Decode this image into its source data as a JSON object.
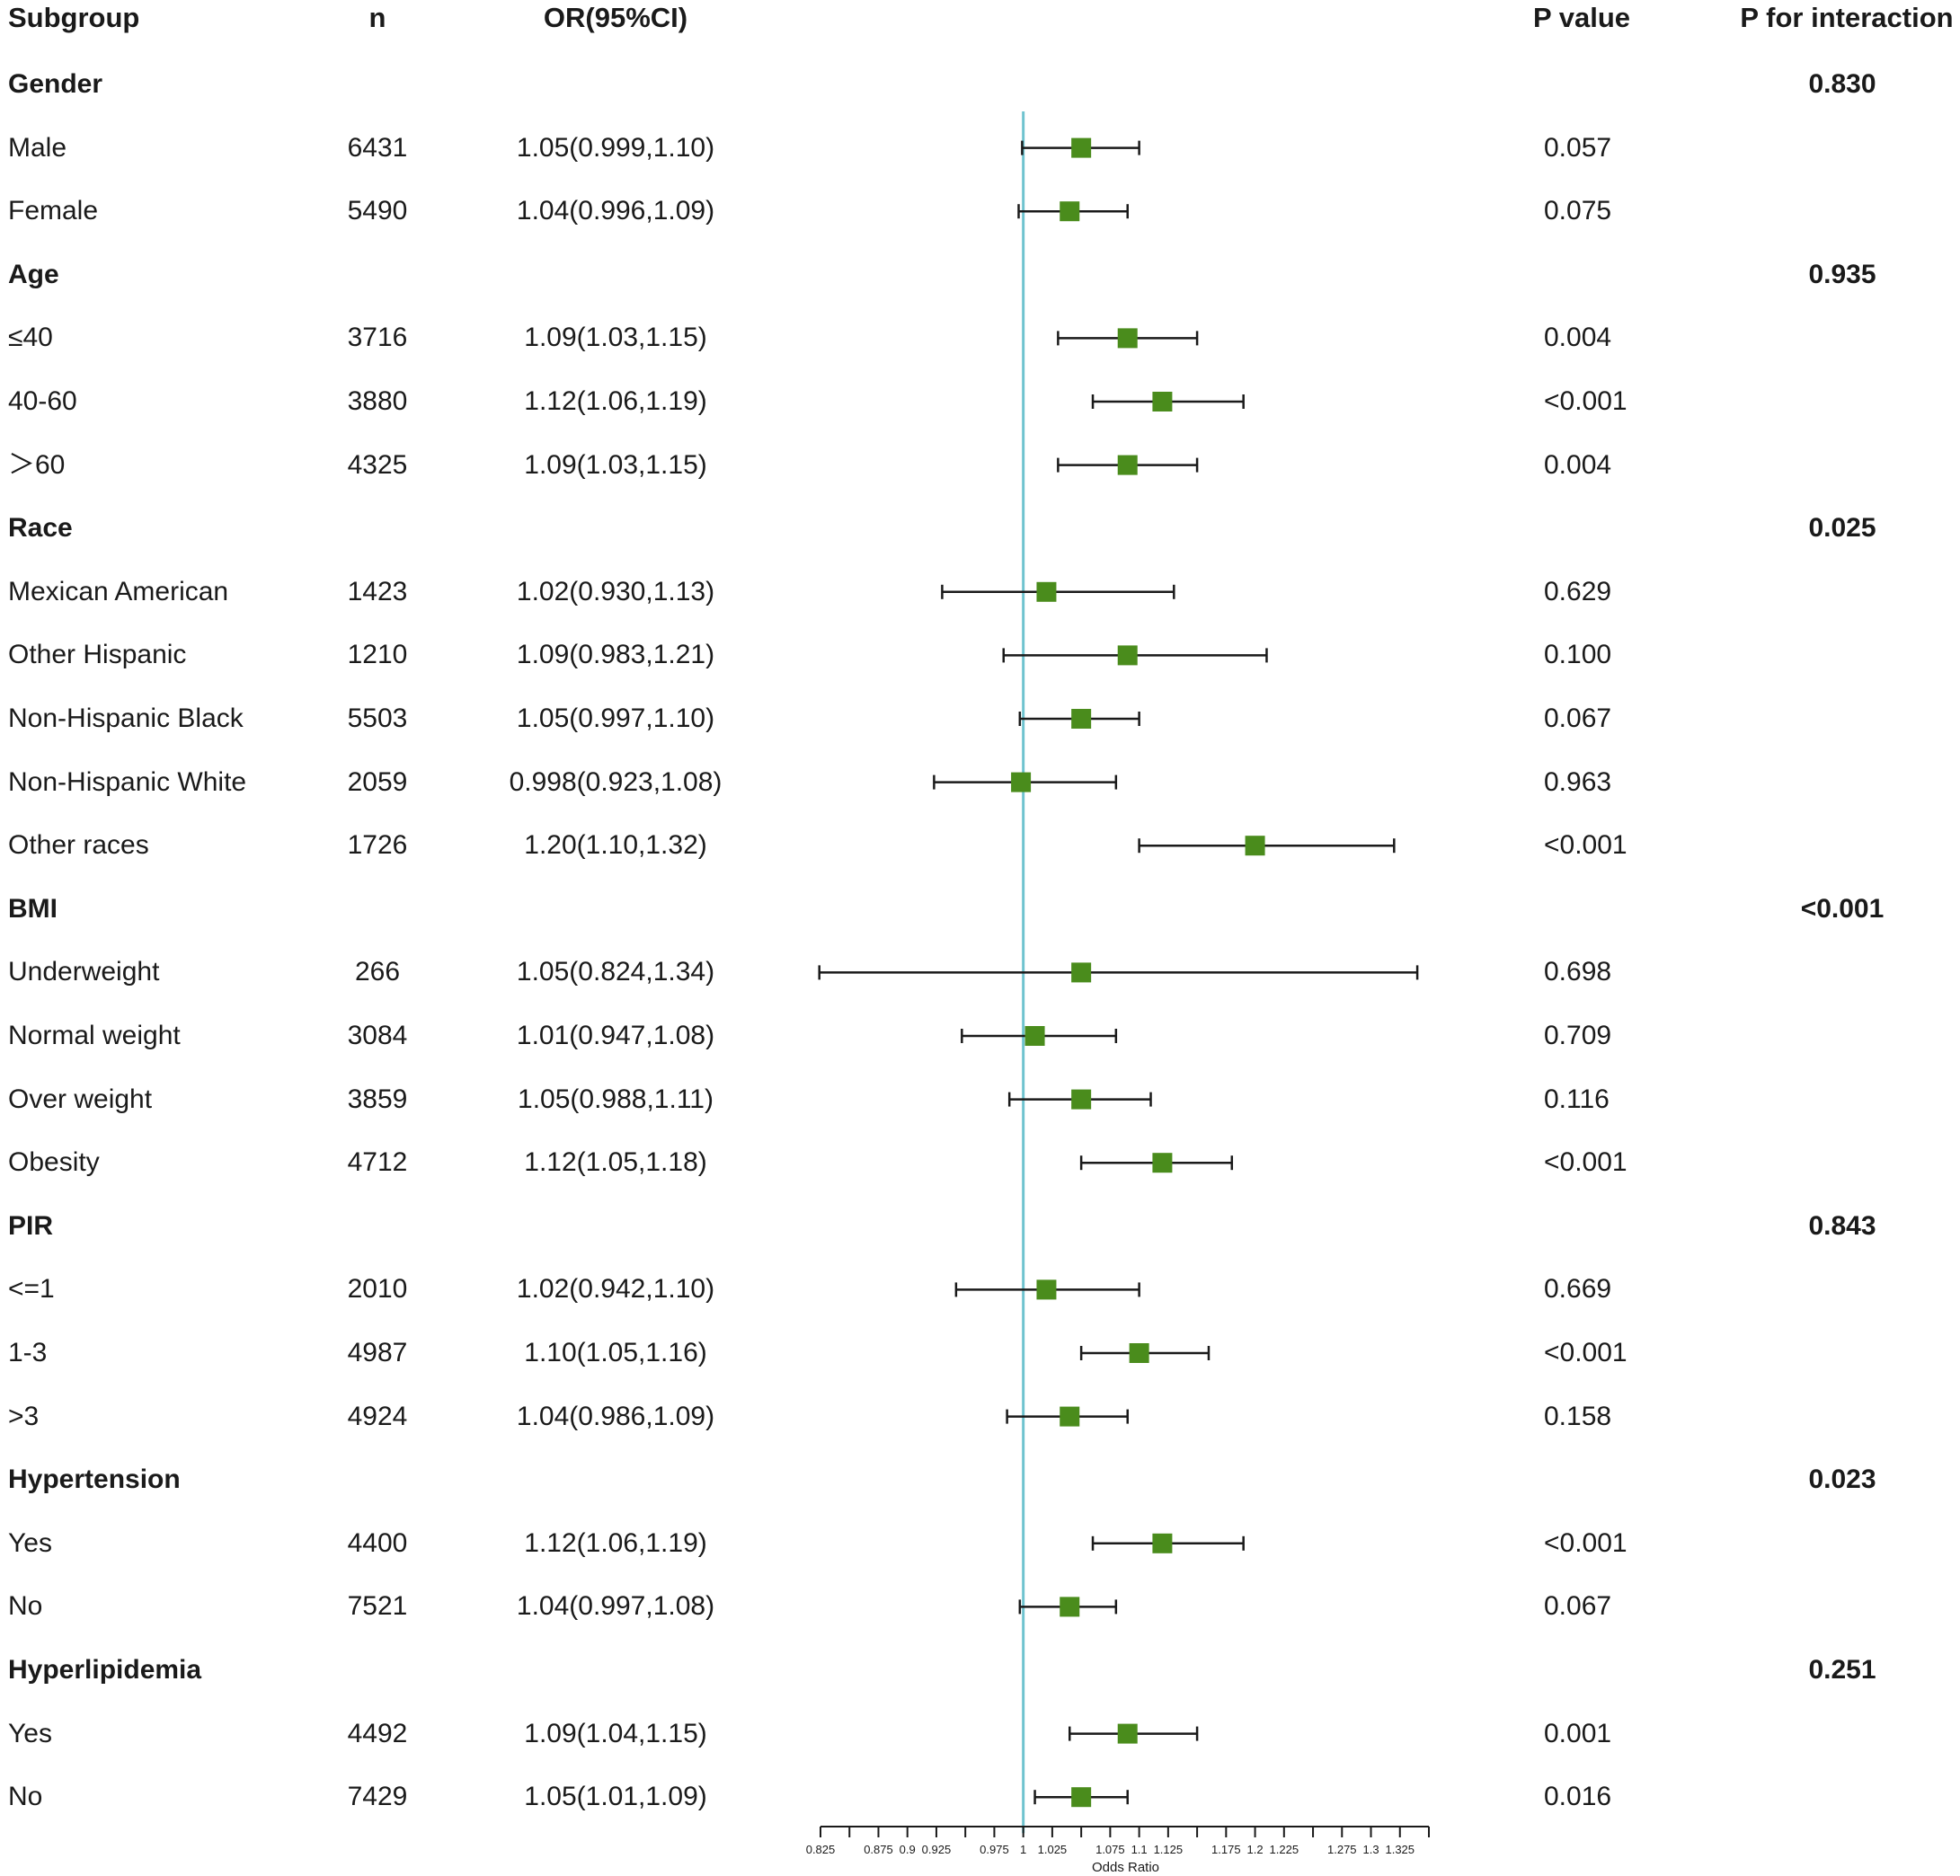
{
  "headers": {
    "subgroup": "Subgroup",
    "n": "n",
    "or": "OR(95%CI)",
    "p_value": "P value",
    "p_interaction": "P for interaction"
  },
  "chart_data": {
    "type": "forest",
    "xlabel": "Odds Ratio",
    "reference_line": 1,
    "xlim": [
      0.825,
      1.35
    ],
    "tick_labels": [
      "0.825",
      "0.875",
      "0.9",
      "0.925",
      "0.975",
      "1",
      "1.025",
      "1.075",
      "1.1",
      "1.125",
      "1.175",
      "1.2",
      "1.225",
      "1.275",
      "1.3",
      "1.325"
    ],
    "marker_color": "#4a8c1c",
    "reference_color": "#6fc3cf",
    "rows": [
      {
        "kind": "group",
        "label": "Gender",
        "p_interaction": "0.830"
      },
      {
        "kind": "item",
        "label": "Male",
        "n": "6431",
        "or_text": "1.05(0.999,1.10)",
        "or": 1.05,
        "lo": 0.999,
        "hi": 1.1,
        "p": "0.057"
      },
      {
        "kind": "item",
        "label": "Female",
        "n": "5490",
        "or_text": "1.04(0.996,1.09)",
        "or": 1.04,
        "lo": 0.996,
        "hi": 1.09,
        "p": "0.075"
      },
      {
        "kind": "group",
        "label": "Age",
        "p_interaction": "0.935"
      },
      {
        "kind": "item",
        "label": "≤40",
        "n": "3716",
        "or_text": "1.09(1.03,1.15)",
        "or": 1.09,
        "lo": 1.03,
        "hi": 1.15,
        "p": "0.004"
      },
      {
        "kind": "item",
        "label": "40-60",
        "n": "3880",
        "or_text": "1.12(1.06,1.19)",
        "or": 1.12,
        "lo": 1.06,
        "hi": 1.19,
        "p": "<0.001"
      },
      {
        "kind": "item",
        "label": "＞60",
        "n": "4325",
        "or_text": "1.09(1.03,1.15)",
        "or": 1.09,
        "lo": 1.03,
        "hi": 1.15,
        "p": "0.004"
      },
      {
        "kind": "group",
        "label": "Race",
        "p_interaction": "0.025"
      },
      {
        "kind": "item",
        "label": "Mexican American",
        "n": "1423",
        "or_text": "1.02(0.930,1.13)",
        "or": 1.02,
        "lo": 0.93,
        "hi": 1.13,
        "p": "0.629"
      },
      {
        "kind": "item",
        "label": "Other Hispanic",
        "n": "1210",
        "or_text": "1.09(0.983,1.21)",
        "or": 1.09,
        "lo": 0.983,
        "hi": 1.21,
        "p": "0.100"
      },
      {
        "kind": "item",
        "label": "Non-Hispanic Black",
        "n": "5503",
        "or_text": "1.05(0.997,1.10)",
        "or": 1.05,
        "lo": 0.997,
        "hi": 1.1,
        "p": "0.067"
      },
      {
        "kind": "item",
        "label": "Non-Hispanic White",
        "n": "2059",
        "or_text": "0.998(0.923,1.08)",
        "or": 0.998,
        "lo": 0.923,
        "hi": 1.08,
        "p": "0.963"
      },
      {
        "kind": "item",
        "label": "Other races",
        "n": "1726",
        "or_text": "1.20(1.10,1.32)",
        "or": 1.2,
        "lo": 1.1,
        "hi": 1.32,
        "p": "<0.001"
      },
      {
        "kind": "group",
        "label": "BMI",
        "p_interaction": "<0.001"
      },
      {
        "kind": "item",
        "label": "Underweight",
        "n": "266",
        "or_text": "1.05(0.824,1.34)",
        "or": 1.05,
        "lo": 0.824,
        "hi": 1.34,
        "p": "0.698"
      },
      {
        "kind": "item",
        "label": "Normal weight",
        "n": "3084",
        "or_text": "1.01(0.947,1.08)",
        "or": 1.01,
        "lo": 0.947,
        "hi": 1.08,
        "p": "0.709"
      },
      {
        "kind": "item",
        "label": "Over weight",
        "n": "3859",
        "or_text": "1.05(0.988,1.11)",
        "or": 1.05,
        "lo": 0.988,
        "hi": 1.11,
        "p": "0.116"
      },
      {
        "kind": "item",
        "label": "Obesity",
        "n": "4712",
        "or_text": "1.12(1.05,1.18)",
        "or": 1.12,
        "lo": 1.05,
        "hi": 1.18,
        "p": "<0.001"
      },
      {
        "kind": "group",
        "label": "PIR",
        "p_interaction": "0.843"
      },
      {
        "kind": "item",
        "label": "<=1",
        "n": "2010",
        "or_text": "1.02(0.942,1.10)",
        "or": 1.02,
        "lo": 0.942,
        "hi": 1.1,
        "p": "0.669"
      },
      {
        "kind": "item",
        "label": "1-3",
        "n": "4987",
        "or_text": "1.10(1.05,1.16)",
        "or": 1.1,
        "lo": 1.05,
        "hi": 1.16,
        "p": "<0.001"
      },
      {
        "kind": "item",
        "label": ">3",
        "n": "4924",
        "or_text": "1.04(0.986,1.09)",
        "or": 1.04,
        "lo": 0.986,
        "hi": 1.09,
        "p": "0.158"
      },
      {
        "kind": "group",
        "label": "Hypertension",
        "p_interaction": "0.023"
      },
      {
        "kind": "item",
        "label": "Yes",
        "n": "4400",
        "or_text": "1.12(1.06,1.19)",
        "or": 1.12,
        "lo": 1.06,
        "hi": 1.19,
        "p": "<0.001"
      },
      {
        "kind": "item",
        "label": "No",
        "n": "7521",
        "or_text": "1.04(0.997,1.08)",
        "or": 1.04,
        "lo": 0.997,
        "hi": 1.08,
        "p": "0.067"
      },
      {
        "kind": "group",
        "label": "Hyperlipidemia",
        "p_interaction": "0.251"
      },
      {
        "kind": "item",
        "label": "Yes",
        "n": "4492",
        "or_text": "1.09(1.04,1.15)",
        "or": 1.09,
        "lo": 1.04,
        "hi": 1.15,
        "p": "0.001"
      },
      {
        "kind": "item",
        "label": "No",
        "n": "7429",
        "or_text": "1.05(1.01,1.09)",
        "or": 1.05,
        "lo": 1.01,
        "hi": 1.09,
        "p": "0.016"
      }
    ]
  }
}
